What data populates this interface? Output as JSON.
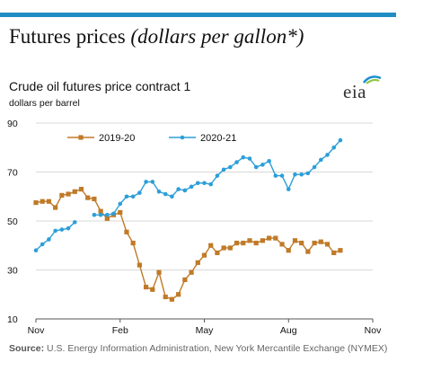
{
  "header": {
    "title": "Futures prices",
    "title_qualifier": "(dollars per gallon*)"
  },
  "logo": {
    "text": "eia"
  },
  "source": {
    "label": "Source:",
    "text": "U.S. Energy Information Administration, New York Mercantile Exchange (NYMEX)"
  },
  "colors": {
    "accent_bar": "#1f8dc4",
    "series_2019_20": "#c07a28",
    "series_2020_21": "#2b9fd8"
  },
  "chart_data": {
    "type": "line",
    "title": "Crude oil futures price contract 1",
    "ylabel": "dollars per barrel",
    "xlabel": "",
    "ylim": [
      10,
      90
    ],
    "y_ticks": [
      10,
      30,
      50,
      70,
      90
    ],
    "x_tick_labels": [
      "Nov",
      "Feb",
      "May",
      "Aug",
      "Nov"
    ],
    "grid": "horizontal",
    "legend_position": "top",
    "x": [
      0,
      1,
      2,
      3,
      4,
      5,
      6,
      7,
      8,
      9,
      10,
      11,
      12,
      13,
      14,
      15,
      16,
      17,
      18,
      19,
      20,
      21,
      22,
      23,
      24,
      25,
      26,
      27,
      28,
      29,
      30,
      31,
      32,
      33,
      34,
      35,
      36,
      37,
      38,
      39,
      40,
      41,
      42,
      43,
      44,
      45,
      46,
      47,
      48,
      49,
      50,
      51,
      52
    ],
    "series": [
      {
        "name": "2019-20",
        "marker": "square",
        "color": "#c07a28",
        "values": [
          57.5,
          58,
          58,
          55.5,
          60.5,
          61,
          62,
          63,
          59.5,
          59,
          54,
          51,
          52.5,
          53.5,
          45.5,
          41,
          32,
          23,
          22,
          29,
          19,
          18,
          20,
          26,
          29,
          33,
          36,
          40,
          37,
          39,
          39,
          41,
          41,
          42,
          41,
          42,
          43,
          43,
          40.5,
          38,
          42,
          41,
          37.5,
          41,
          41.5,
          40.5,
          37,
          38,
          null,
          null,
          null,
          null,
          null
        ]
      },
      {
        "name": "2020-21",
        "marker": "circle",
        "color": "#2b9fd8",
        "values": [
          38,
          40.5,
          42.5,
          46,
          46.5,
          47,
          49.5,
          null,
          null,
          52.5,
          52.5,
          52.5,
          53,
          57,
          60,
          60,
          61.5,
          66,
          66,
          62,
          61,
          60,
          63,
          62.5,
          64,
          65.5,
          65.5,
          65,
          68.5,
          71,
          72,
          74,
          76,
          75.5,
          72,
          73,
          74.5,
          68.5,
          68.5,
          63,
          69,
          69,
          69.5,
          72,
          75,
          77,
          80,
          83,
          null,
          null,
          null,
          null,
          null
        ]
      }
    ]
  }
}
